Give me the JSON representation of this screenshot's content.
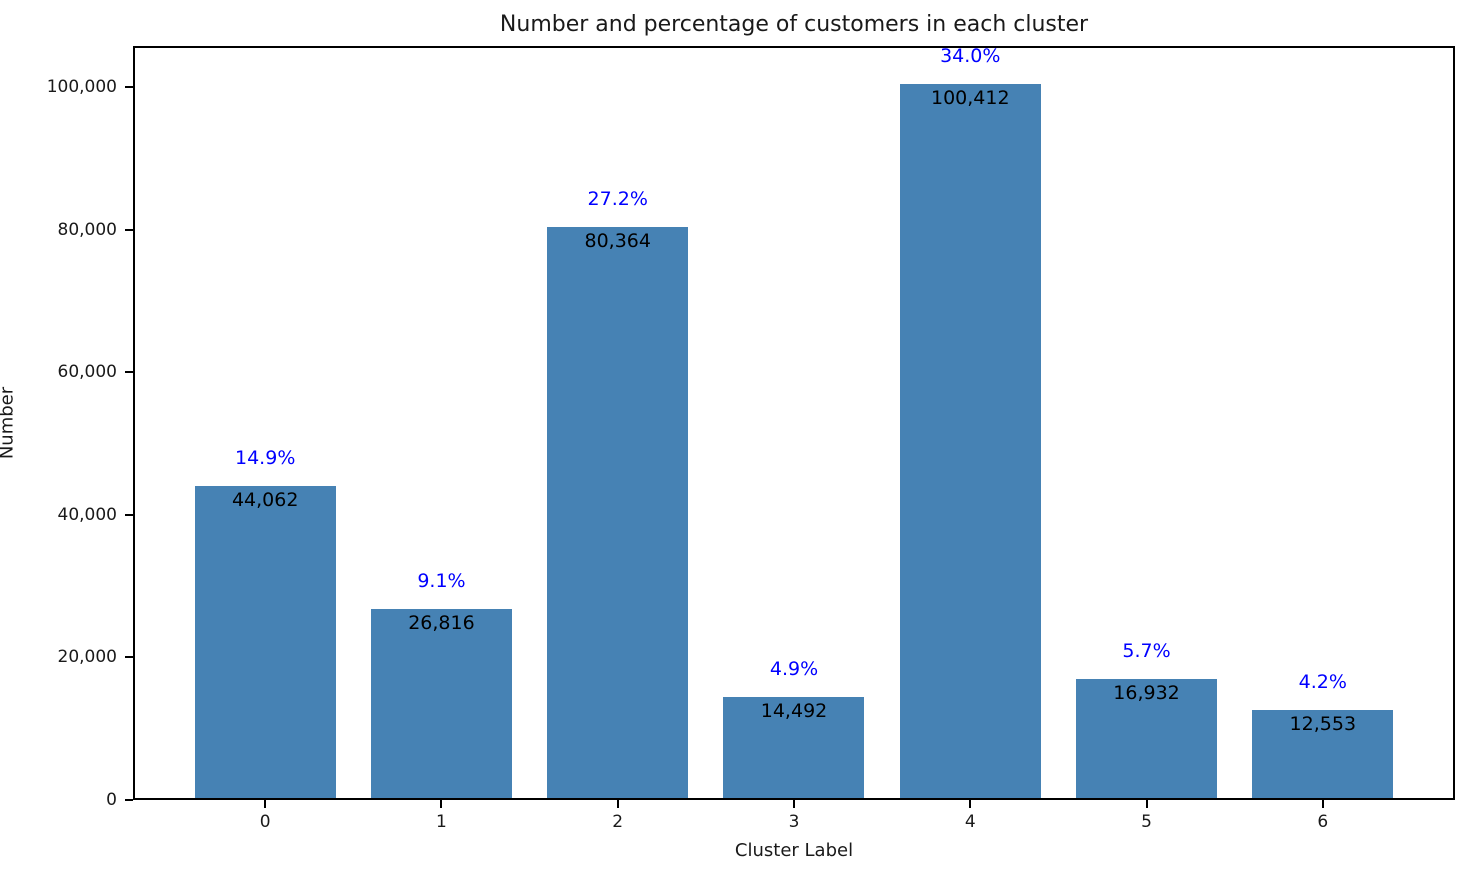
{
  "chart_data": {
    "type": "bar",
    "title": "Number and percentage of customers in each cluster",
    "xlabel": "Cluster Label",
    "ylabel": "Number",
    "categories": [
      "0",
      "1",
      "2",
      "3",
      "4",
      "5",
      "6"
    ],
    "values": [
      44062,
      26816,
      80364,
      14492,
      100412,
      16932,
      12553
    ],
    "value_labels": [
      "44,062",
      "26,816",
      "80,364",
      "14,492",
      "100,412",
      "16,932",
      "12,553"
    ],
    "percent_labels": [
      "14.9%",
      "9.1%",
      "27.2%",
      "4.9%",
      "34.0%",
      "5.7%",
      "4.2%"
    ],
    "yticks": [
      0,
      20000,
      40000,
      60000,
      80000,
      100000
    ],
    "ytick_labels": [
      "0",
      "20,000",
      "40,000",
      "60,000",
      "80,000",
      "100,000"
    ],
    "ylim": [
      0,
      105750
    ],
    "xlim_units": [
      -0.75,
      6.75
    ],
    "bar_width_units": 0.8,
    "grid": false,
    "legend": "none",
    "colors": {
      "bar": "#4682B4",
      "percent_label": "#0000FF",
      "count_label": "#000000",
      "axis": "#000000",
      "background": "#FFFFFF"
    }
  }
}
